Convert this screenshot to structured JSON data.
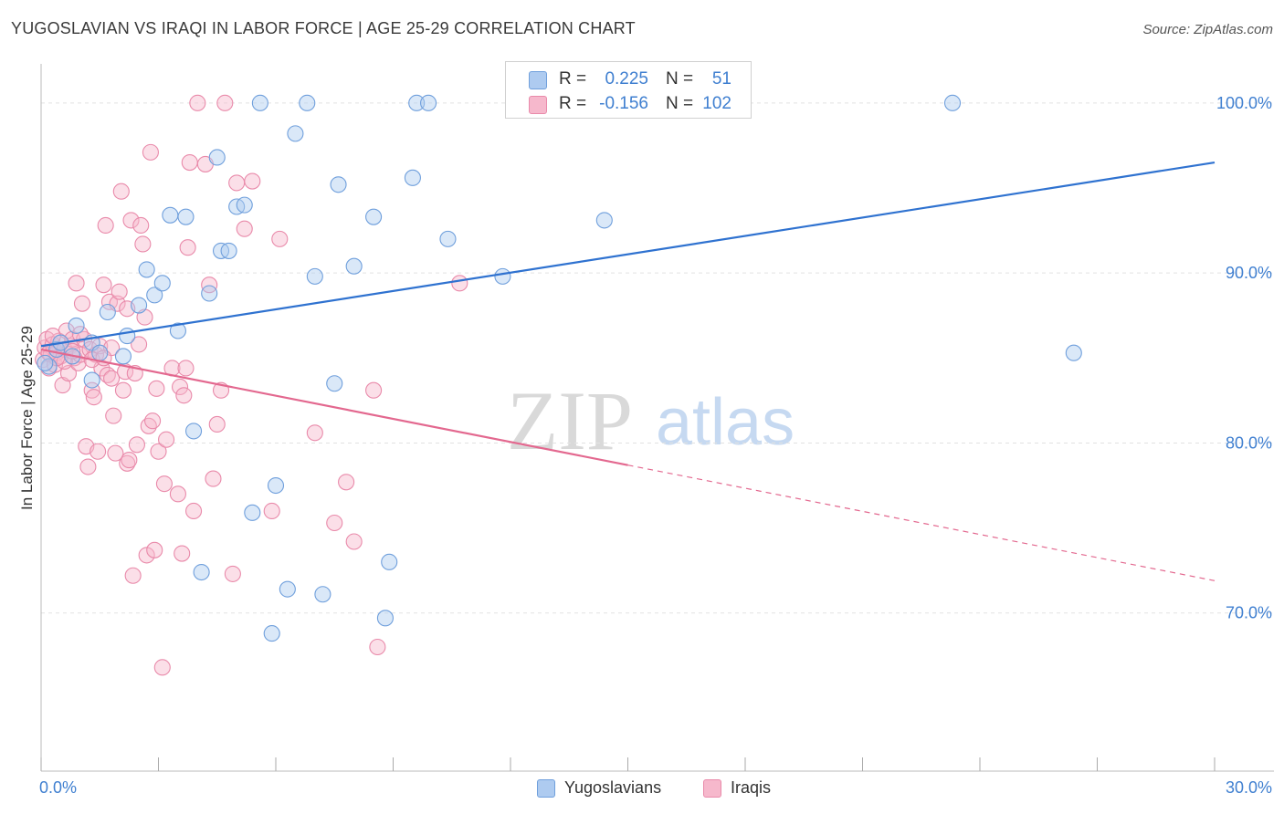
{
  "header": {
    "title": "YUGOSLAVIAN VS IRAQI IN LABOR FORCE | AGE 25-29 CORRELATION CHART",
    "source": "Source: ZipAtlas.com"
  },
  "watermark": {
    "zip": "ZIP",
    "atlas": "atlas"
  },
  "legend_top": {
    "rows": [
      {
        "r_label": "R =",
        "r_value": "0.225",
        "n_label": "N =",
        "n_value": "51"
      },
      {
        "r_label": "R =",
        "r_value": "-0.156",
        "n_label": "N =",
        "n_value": "102"
      }
    ]
  },
  "legend_bottom": {
    "items": [
      "Yugoslavians",
      "Iraqis"
    ]
  },
  "colors": {
    "blue_fill": "#aecbf0",
    "blue_stroke": "#6f9fdc",
    "blue_line": "#2f72d0",
    "pink_fill": "#f6b8cc",
    "pink_stroke": "#e98aaa",
    "pink_line": "#e3688f",
    "tick_text": "#3f7fd0",
    "grid": "#e2e2e2"
  },
  "chart_data": {
    "type": "scatter",
    "title": "YUGOSLAVIAN VS IRAQI IN LABOR FORCE | AGE 25-29 CORRELATION CHART",
    "xlabel": "",
    "ylabel": "In Labor Force | Age 25-29",
    "xlim": [
      0,
      30
    ],
    "ylim": [
      60.7,
      102.3
    ],
    "x_tick_labels": [
      "0.0%",
      "30.0%"
    ],
    "y_ticks": [
      70,
      80,
      90,
      100
    ],
    "y_tick_labels": [
      "70.0%",
      "80.0%",
      "90.0%",
      "100.0%"
    ],
    "grid": true,
    "legend_position": "top-center",
    "series": [
      {
        "name": "Yugoslavians",
        "r": 0.225,
        "n": 51,
        "trend": {
          "x_start": 0,
          "y_start": 85.7,
          "x_end": 30,
          "y_end": 96.5
        },
        "points": [
          [
            0.2,
            84.5
          ],
          [
            0.4,
            85.5
          ],
          [
            0.5,
            85.9
          ],
          [
            0.8,
            85.1
          ],
          [
            0.9,
            86.9
          ],
          [
            1.3,
            85.9
          ],
          [
            1.3,
            83.7
          ],
          [
            1.5,
            85.3
          ],
          [
            1.7,
            87.7
          ],
          [
            2.1,
            85.1
          ],
          [
            2.2,
            86.3
          ],
          [
            2.5,
            88.1
          ],
          [
            2.7,
            90.2
          ],
          [
            2.9,
            88.7
          ],
          [
            3.1,
            89.4
          ],
          [
            3.3,
            93.4
          ],
          [
            3.5,
            86.6
          ],
          [
            3.7,
            93.3
          ],
          [
            3.9,
            80.7
          ],
          [
            4.1,
            72.4
          ],
          [
            4.3,
            88.8
          ],
          [
            4.5,
            96.8
          ],
          [
            4.6,
            91.3
          ],
          [
            4.8,
            91.3
          ],
          [
            5.0,
            93.9
          ],
          [
            5.2,
            94.0
          ],
          [
            5.4,
            75.9
          ],
          [
            5.6,
            100.0
          ],
          [
            5.9,
            68.8
          ],
          [
            6.0,
            77.5
          ],
          [
            6.3,
            71.4
          ],
          [
            6.5,
            98.2
          ],
          [
            6.8,
            100.0
          ],
          [
            7.0,
            89.8
          ],
          [
            7.2,
            71.1
          ],
          [
            7.5,
            83.5
          ],
          [
            7.6,
            95.2
          ],
          [
            8.0,
            90.4
          ],
          [
            8.5,
            93.3
          ],
          [
            8.8,
            69.7
          ],
          [
            8.9,
            73.0
          ],
          [
            9.5,
            95.6
          ],
          [
            9.6,
            100.0
          ],
          [
            9.9,
            100.0
          ],
          [
            10.4,
            92.0
          ],
          [
            11.8,
            89.8
          ],
          [
            14.4,
            93.1
          ],
          [
            15.6,
            100.0
          ],
          [
            23.3,
            100.0
          ],
          [
            26.4,
            85.3
          ],
          [
            0.1,
            84.7
          ]
        ]
      },
      {
        "name": "Iraqis",
        "r": -0.156,
        "n": 102,
        "trend": {
          "x_start": 0,
          "y_start": 85.5,
          "x_end": 15,
          "y_end": 78.7,
          "dash_x_end": 30,
          "dash_y_end": 71.9
        },
        "points": [
          [
            0.05,
            84.9
          ],
          [
            0.1,
            85.6
          ],
          [
            0.15,
            86.1
          ],
          [
            0.2,
            84.4
          ],
          [
            0.25,
            85.2
          ],
          [
            0.3,
            85.8
          ],
          [
            0.35,
            84.6
          ],
          [
            0.4,
            85.3
          ],
          [
            0.45,
            86.0
          ],
          [
            0.5,
            85.1
          ],
          [
            0.55,
            83.4
          ],
          [
            0.6,
            85.5
          ],
          [
            0.65,
            86.6
          ],
          [
            0.7,
            84.1
          ],
          [
            0.75,
            85.7
          ],
          [
            0.8,
            86.1
          ],
          [
            0.85,
            85.0
          ],
          [
            0.9,
            89.4
          ],
          [
            0.95,
            84.7
          ],
          [
            1.0,
            85.2
          ],
          [
            1.05,
            88.2
          ],
          [
            1.1,
            86.1
          ],
          [
            1.15,
            79.8
          ],
          [
            1.2,
            78.6
          ],
          [
            1.25,
            85.5
          ],
          [
            1.3,
            83.1
          ],
          [
            1.35,
            82.7
          ],
          [
            1.4,
            85.2
          ],
          [
            1.45,
            79.5
          ],
          [
            1.5,
            85.7
          ],
          [
            1.55,
            84.4
          ],
          [
            1.6,
            89.3
          ],
          [
            1.65,
            92.8
          ],
          [
            1.7,
            84.0
          ],
          [
            1.75,
            88.3
          ],
          [
            1.8,
            83.8
          ],
          [
            1.85,
            81.6
          ],
          [
            1.9,
            79.4
          ],
          [
            1.95,
            88.2
          ],
          [
            2.0,
            88.9
          ],
          [
            2.05,
            94.8
          ],
          [
            2.1,
            83.1
          ],
          [
            2.15,
            84.2
          ],
          [
            2.2,
            78.8
          ],
          [
            2.25,
            79.0
          ],
          [
            2.3,
            93.1
          ],
          [
            2.35,
            72.2
          ],
          [
            2.4,
            84.1
          ],
          [
            2.45,
            79.9
          ],
          [
            2.5,
            85.8
          ],
          [
            2.55,
            92.8
          ],
          [
            2.6,
            91.7
          ],
          [
            2.65,
            87.4
          ],
          [
            2.7,
            73.4
          ],
          [
            2.75,
            81.0
          ],
          [
            2.8,
            97.1
          ],
          [
            2.85,
            81.3
          ],
          [
            2.9,
            73.7
          ],
          [
            2.95,
            83.2
          ],
          [
            3.0,
            79.5
          ],
          [
            3.1,
            66.8
          ],
          [
            3.15,
            77.6
          ],
          [
            3.2,
            80.2
          ],
          [
            3.35,
            84.4
          ],
          [
            3.5,
            77.0
          ],
          [
            3.55,
            83.3
          ],
          [
            3.6,
            73.5
          ],
          [
            3.65,
            82.8
          ],
          [
            3.7,
            84.4
          ],
          [
            3.75,
            91.5
          ],
          [
            3.8,
            96.5
          ],
          [
            3.9,
            76.0
          ],
          [
            4.0,
            100.0
          ],
          [
            4.2,
            96.4
          ],
          [
            4.3,
            89.3
          ],
          [
            4.4,
            77.9
          ],
          [
            4.5,
            81.1
          ],
          [
            4.6,
            83.1
          ],
          [
            4.7,
            100.0
          ],
          [
            4.9,
            72.3
          ],
          [
            5.0,
            95.3
          ],
          [
            5.2,
            92.6
          ],
          [
            5.4,
            95.4
          ],
          [
            5.9,
            76.0
          ],
          [
            6.1,
            92.0
          ],
          [
            7.0,
            80.6
          ],
          [
            7.5,
            75.3
          ],
          [
            7.8,
            77.7
          ],
          [
            8.0,
            74.2
          ],
          [
            8.5,
            83.1
          ],
          [
            8.6,
            68.0
          ],
          [
            10.7,
            89.4
          ],
          [
            0.3,
            86.3
          ],
          [
            0.6,
            84.8
          ],
          [
            1.0,
            86.4
          ],
          [
            1.8,
            85.6
          ],
          [
            2.2,
            87.9
          ],
          [
            0.4,
            85.0
          ],
          [
            0.8,
            85.4
          ],
          [
            1.3,
            84.9
          ],
          [
            1.6,
            85.0
          ],
          [
            0.2,
            85.3
          ]
        ]
      }
    ]
  }
}
